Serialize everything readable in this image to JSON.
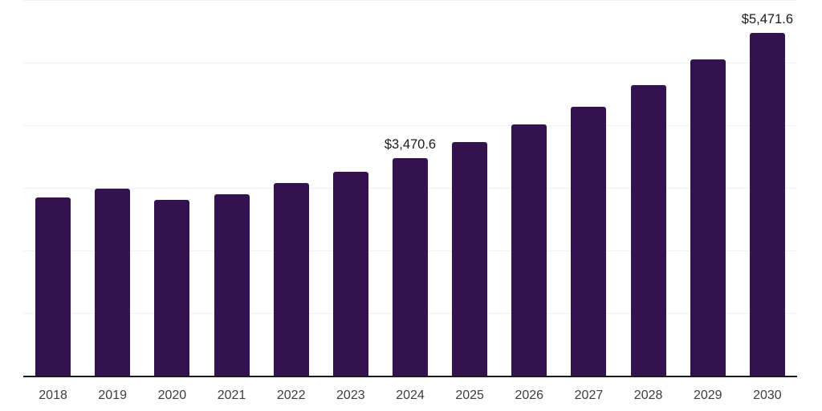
{
  "chart_data": {
    "type": "bar",
    "title": "",
    "xlabel": "",
    "ylabel": "",
    "categories": [
      "2018",
      "2019",
      "2020",
      "2021",
      "2022",
      "2023",
      "2024",
      "2025",
      "2026",
      "2027",
      "2028",
      "2029",
      "2030"
    ],
    "values": [
      2850,
      2990,
      2810,
      2900,
      3080,
      3260,
      3470.6,
      3725,
      4015,
      4295,
      4645,
      5055,
      5471.6
    ],
    "data_labels": {
      "2024": "$3,470.6",
      "2030": "$5,471.6"
    },
    "ylim": [
      0,
      6000
    ],
    "gridline_step": 1000,
    "grid": true,
    "legend": "none",
    "y_tick_labels_shown": false,
    "colors": {
      "bar": "#341250",
      "gridline": "#f2f2f2",
      "axis_line": "#1a1a1a",
      "data_label": "#1a1a1a",
      "tick_label": "#3d3d3d",
      "background": "#ffffff"
    }
  }
}
